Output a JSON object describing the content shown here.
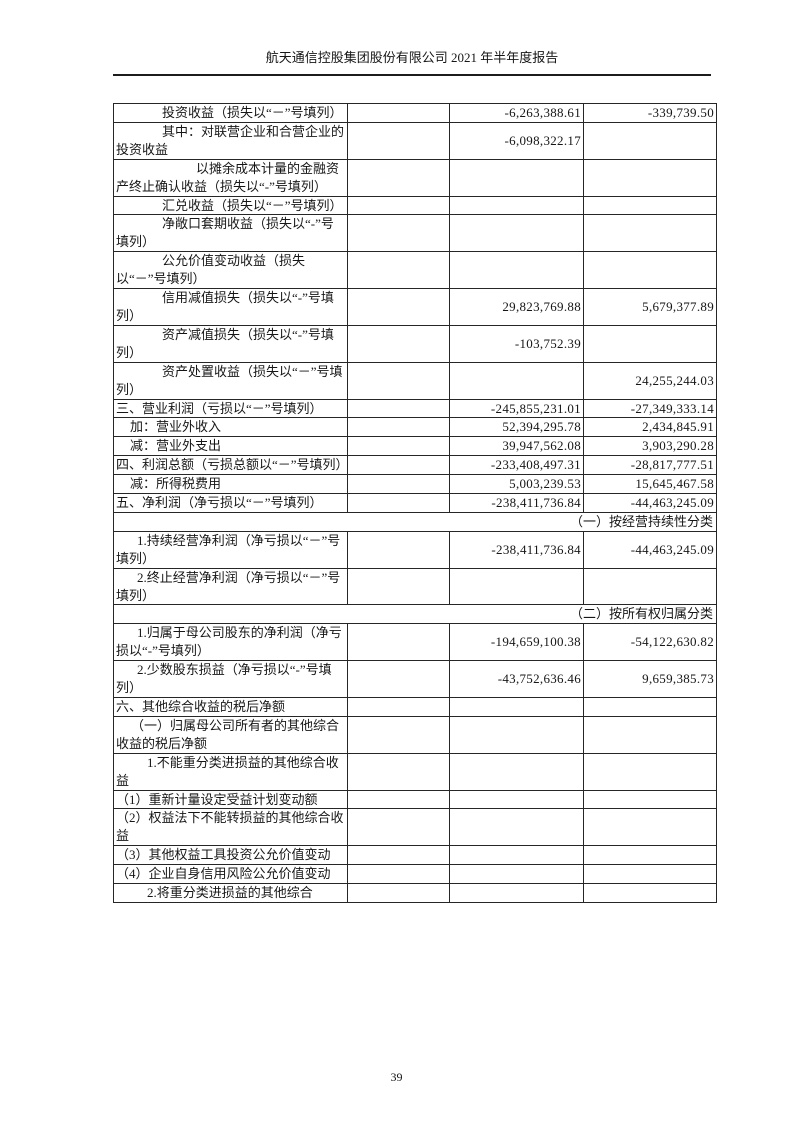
{
  "header": {
    "title": "航天通信控股集团股份有限公司 2021 年半年度报告"
  },
  "footer": {
    "page_number": "39"
  },
  "colors": {
    "background": "#ffffff",
    "text": "#161616",
    "border": "#262626"
  },
  "table": {
    "description": "利润表（续页，无表头，四列：项目 / 空列 / 本期金额 / 上期金额）",
    "rows": [
      {
        "type": "item",
        "indent": 46,
        "label": "投资收益（损失以“－”号填列）",
        "current": "-6,263,388.61",
        "prior": "-339,739.50"
      },
      {
        "type": "item",
        "indent": 46,
        "label": "其中：对联营企业和合营企业的投资收益",
        "current": "-6,098,322.17",
        "prior": ""
      },
      {
        "type": "item",
        "indent": 80,
        "label": "以摊余成本计量的金融资产终止确认收益（损失以“-”号填列）",
        "current": "",
        "prior": ""
      },
      {
        "type": "item",
        "indent": 46,
        "label": "汇兑收益（损失以“－”号填列）",
        "current": "",
        "prior": ""
      },
      {
        "type": "item",
        "indent": 46,
        "label": "净敞口套期收益（损失以“-”号填列）",
        "current": "",
        "prior": ""
      },
      {
        "type": "item",
        "indent": 46,
        "label": "公允价值变动收益（损失以“－”号填列）",
        "current": "",
        "prior": ""
      },
      {
        "type": "item",
        "indent": 46,
        "label": "信用减值损失（损失以“-”号填列）",
        "current": "29,823,769.88",
        "prior": "5,679,377.89"
      },
      {
        "type": "item",
        "indent": 46,
        "label": "资产减值损失（损失以“-”号填列）",
        "current": "-103,752.39",
        "prior": ""
      },
      {
        "type": "item",
        "indent": 46,
        "label": "资产处置收益（损失以“－”号填列）",
        "current": "",
        "prior": "24,255,244.03"
      },
      {
        "type": "item",
        "indent": 0,
        "label": "三、营业利润（亏损以“－”号填列）",
        "current": "-245,855,231.01",
        "prior": "-27,349,333.14"
      },
      {
        "type": "item",
        "indent": 14,
        "label": "加：营业外收入",
        "current": "52,394,295.78",
        "prior": "2,434,845.91"
      },
      {
        "type": "item",
        "indent": 14,
        "label": "减：营业外支出",
        "current": "39,947,562.08",
        "prior": "3,903,290.28"
      },
      {
        "type": "item",
        "indent": 0,
        "label": "四、利润总额（亏损总额以“－”号填列）",
        "current": "-233,408,497.31",
        "prior": "-28,817,777.51"
      },
      {
        "type": "item",
        "indent": 14,
        "label": "减：所得税费用",
        "current": "5,003,239.53",
        "prior": "15,645,467.58"
      },
      {
        "type": "item",
        "indent": 0,
        "label": "五、净利润（净亏损以“－”号填列）",
        "current": "-238,411,736.84",
        "prior": "-44,463,245.09"
      },
      {
        "type": "section",
        "label": "（一）按经营持续性分类"
      },
      {
        "type": "item",
        "indent": 21,
        "label": "1.持续经营净利润（净亏损以“－”号填列）",
        "current": "-238,411,736.84",
        "prior": "-44,463,245.09"
      },
      {
        "type": "item",
        "indent": 21,
        "label": "2.终止经营净利润（净亏损以“－”号填列）",
        "current": "",
        "prior": ""
      },
      {
        "type": "section",
        "label": "（二）按所有权归属分类"
      },
      {
        "type": "item",
        "indent": 21,
        "label": "1.归属于母公司股东的净利润（净亏损以“-”号填列）",
        "current": "-194,659,100.38",
        "prior": "-54,122,630.82"
      },
      {
        "type": "item",
        "indent": 21,
        "label": "2.少数股东损益（净亏损以“-”号填列）",
        "current": "-43,752,636.46",
        "prior": "9,659,385.73"
      },
      {
        "type": "item",
        "indent": 0,
        "label": "六、其他综合收益的税后净额",
        "current": "",
        "prior": ""
      },
      {
        "type": "item",
        "indent": 15,
        "label": "（一）归属母公司所有者的其他综合收益的税后净额",
        "current": "",
        "prior": ""
      },
      {
        "type": "item",
        "indent": 31,
        "label": "1.不能重分类进损益的其他综合收益",
        "current": "",
        "prior": ""
      },
      {
        "type": "item",
        "indent": 0,
        "label": "（1）重新计量设定受益计划变动额",
        "current": "",
        "prior": ""
      },
      {
        "type": "item",
        "indent": 0,
        "label": "（2）权益法下不能转损益的其他综合收益",
        "current": "",
        "prior": ""
      },
      {
        "type": "item",
        "indent": 0,
        "label": "（3）其他权益工具投资公允价值变动",
        "current": "",
        "prior": ""
      },
      {
        "type": "item",
        "indent": 0,
        "label": "（4）企业自身信用风险公允价值变动",
        "current": "",
        "prior": ""
      },
      {
        "type": "item",
        "indent": 31,
        "label": "2.将重分类进损益的其他综合",
        "current": "",
        "prior": ""
      }
    ]
  }
}
